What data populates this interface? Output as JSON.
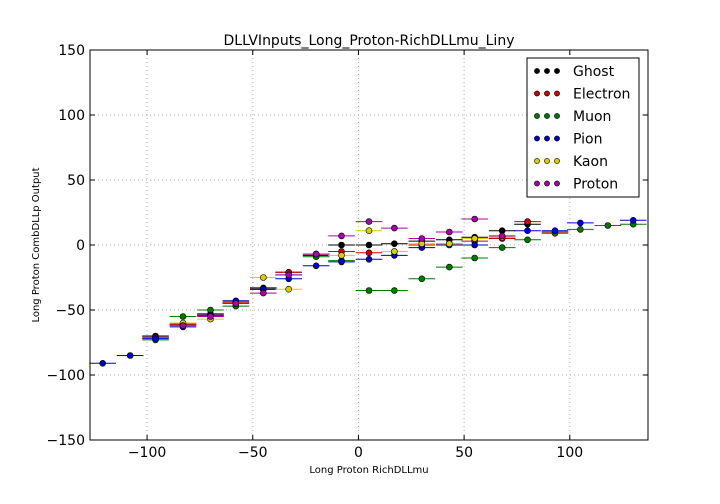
{
  "chart_data": {
    "type": "scatter",
    "title": "DLLVInputs_Long_Proton-RichDLLmu_Liny",
    "xlabel": "Long Proton RichDLLmu",
    "ylabel": "Long Proton CombDLLp Output",
    "xlim": [
      -127,
      137
    ],
    "ylim": [
      -150,
      150
    ],
    "xticks": [
      -100,
      -50,
      0,
      50,
      100
    ],
    "yticks": [
      -150,
      -100,
      -50,
      0,
      50,
      100,
      150
    ],
    "grid": true,
    "legend_position": "top-right",
    "x_error_halfwidth": 6.3,
    "series": [
      {
        "name": "Ghost",
        "color": "#000000",
        "x": [
          -96,
          -83,
          -70,
          -58,
          -45,
          -33,
          -20,
          -8,
          5,
          17,
          30,
          43,
          55,
          68,
          80
        ],
        "y": [
          -70,
          -61,
          -53,
          -43,
          -33,
          -21,
          -8,
          0,
          0,
          1,
          3,
          4,
          6,
          11,
          16
        ]
      },
      {
        "name": "Electron",
        "color": "#cc0000",
        "x": [
          -96,
          -83,
          -70,
          -58,
          -45,
          -33,
          -20,
          -8,
          5,
          17,
          30,
          43,
          55,
          68,
          80,
          93
        ],
        "y": [
          -71,
          -61,
          -54,
          -44,
          -34,
          -21,
          -7,
          -5,
          -6,
          -5,
          0,
          1,
          3,
          5,
          18,
          10
        ]
      },
      {
        "name": "Muon",
        "color": "#007700",
        "x": [
          -96,
          -83,
          -70,
          -58,
          -45,
          -33,
          -20,
          -8,
          5,
          17,
          30,
          43,
          55,
          68,
          80,
          93,
          105,
          118,
          130
        ],
        "y": [
          -73,
          -55,
          -50,
          -47,
          -34,
          -23,
          -9,
          -12,
          -35,
          -35,
          -26,
          -17,
          -10,
          -2,
          4,
          9,
          12,
          15,
          16
        ]
      },
      {
        "name": "Pion",
        "color": "#0000cc",
        "x": [
          -121,
          -108,
          -96,
          -83,
          -70,
          -58,
          -45,
          -33,
          -20,
          -8,
          5,
          17,
          30,
          43,
          55,
          68,
          80,
          93,
          105,
          130
        ],
        "y": [
          -91,
          -85,
          -72,
          -63,
          -54,
          -43,
          -34,
          -26,
          -16,
          -13,
          -11,
          -8,
          -2,
          0,
          0,
          6,
          11,
          11,
          17,
          19
        ]
      },
      {
        "name": "Kaon",
        "color": "#ddcc00",
        "x": [
          -83,
          -70,
          -58,
          -45,
          -33,
          -20,
          -8,
          5,
          17,
          30,
          43,
          55,
          68
        ],
        "y": [
          -60,
          -57,
          -45,
          -25,
          -34,
          -7,
          -8,
          11,
          -5,
          1,
          1,
          5,
          6
        ]
      },
      {
        "name": "Proton",
        "color": "#aa00aa",
        "x": [
          -83,
          -70,
          -58,
          -45,
          -33,
          -20,
          -8,
          5,
          17,
          30,
          43,
          55,
          68
        ],
        "y": [
          -62,
          -55,
          -45,
          -37,
          -23,
          -7,
          7,
          18,
          13,
          5,
          10,
          20,
          7
        ]
      }
    ]
  }
}
